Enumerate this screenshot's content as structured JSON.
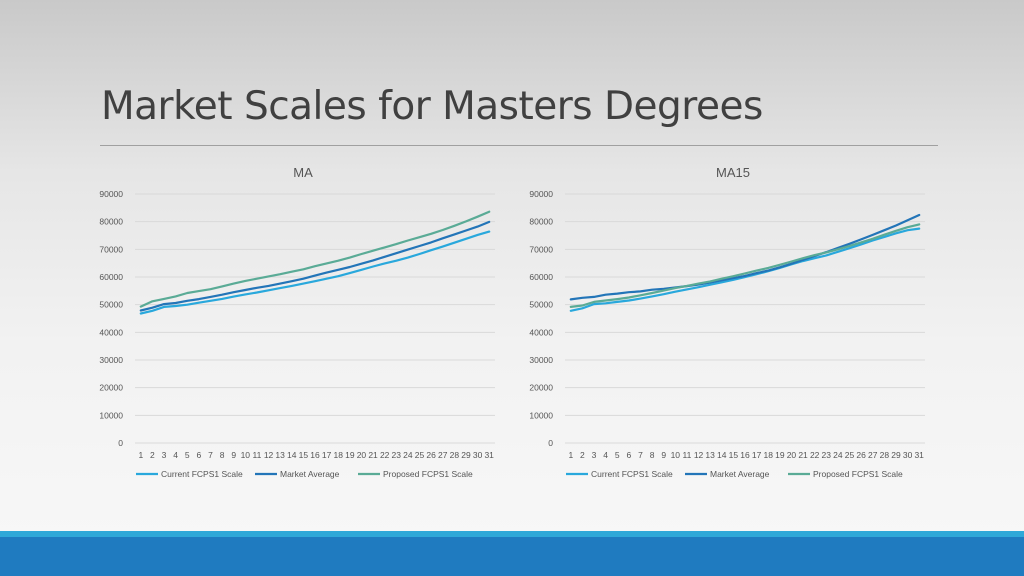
{
  "slide": {
    "title": "Market Scales for  Masters Degrees"
  },
  "colors": {
    "current": "#29a8dc",
    "market": "#2375b8",
    "proposed": "#5aab96",
    "grid": "#d9d9d9",
    "footer": "#1f7bc0",
    "footer_strip": "#2fa8d8"
  },
  "chart_data": [
    {
      "type": "line",
      "title": "MA",
      "x": [
        1,
        2,
        3,
        4,
        5,
        6,
        7,
        8,
        9,
        10,
        11,
        12,
        13,
        14,
        15,
        16,
        17,
        18,
        19,
        20,
        21,
        22,
        23,
        24,
        25,
        26,
        27,
        28,
        29,
        30,
        31
      ],
      "ylim": [
        0,
        90000
      ],
      "yticks": [
        0,
        10000,
        20000,
        30000,
        40000,
        50000,
        60000,
        70000,
        80000,
        90000
      ],
      "grid": true,
      "legend_position": "bottom",
      "series": [
        {
          "name": "Current FCPS1 Scale",
          "color": "#29a8dc",
          "values": [
            46800,
            47800,
            49200,
            49500,
            50000,
            50700,
            51400,
            52100,
            52900,
            53700,
            54400,
            55200,
            56000,
            56800,
            57600,
            58500,
            59400,
            60300,
            61400,
            62600,
            63800,
            64900,
            65900,
            67000,
            68300,
            69700,
            71000,
            72400,
            73800,
            75200,
            76400
          ]
        },
        {
          "name": "Market Average",
          "color": "#2375b8",
          "values": [
            47900,
            48900,
            50200,
            50600,
            51400,
            52000,
            52800,
            53600,
            54500,
            55300,
            56100,
            56800,
            57600,
            58500,
            59400,
            60500,
            61600,
            62600,
            63600,
            64800,
            66000,
            67300,
            68600,
            69900,
            71200,
            72500,
            74000,
            75400,
            76800,
            78200,
            79900
          ]
        },
        {
          "name": "Proposed FCPS1 Scale",
          "color": "#5aab96",
          "values": [
            49300,
            51200,
            52100,
            53000,
            54200,
            54900,
            55600,
            56600,
            57600,
            58600,
            59400,
            60200,
            61000,
            61900,
            62800,
            63900,
            64900,
            65900,
            67000,
            68300,
            69500,
            70700,
            71900,
            73200,
            74400,
            75600,
            77000,
            78500,
            80100,
            81800,
            83600
          ]
        }
      ]
    },
    {
      "type": "line",
      "title": "MA15",
      "x": [
        1,
        2,
        3,
        4,
        5,
        6,
        7,
        8,
        9,
        10,
        11,
        12,
        13,
        14,
        15,
        16,
        17,
        18,
        19,
        20,
        21,
        22,
        23,
        24,
        25,
        26,
        27,
        28,
        29,
        30,
        31
      ],
      "ylim": [
        0,
        90000
      ],
      "yticks": [
        0,
        10000,
        20000,
        30000,
        40000,
        50000,
        60000,
        70000,
        80000,
        90000
      ],
      "grid": true,
      "legend_position": "bottom",
      "series": [
        {
          "name": "Current FCPS1 Scale",
          "color": "#29a8dc",
          "values": [
            47800,
            48700,
            50200,
            50500,
            51000,
            51500,
            52200,
            53000,
            53800,
            54700,
            55500,
            56300,
            57200,
            58100,
            59000,
            60000,
            61000,
            62100,
            63300,
            64600,
            65800,
            66800,
            67800,
            69100,
            70400,
            71800,
            73200,
            74500,
            75800,
            76900,
            77500
          ]
        },
        {
          "name": "Market Average",
          "color": "#2375b8",
          "values": [
            51900,
            52500,
            52800,
            53600,
            54000,
            54500,
            54800,
            55400,
            55700,
            56200,
            56700,
            57300,
            58000,
            58800,
            59600,
            60400,
            61400,
            62300,
            63500,
            64800,
            66200,
            67600,
            69000,
            70500,
            72000,
            73600,
            75200,
            76900,
            78600,
            80500,
            82400
          ]
        },
        {
          "name": "Proposed FCPS1 Scale",
          "color": "#5aab96",
          "values": [
            49200,
            49700,
            51000,
            51500,
            52000,
            52600,
            53400,
            54200,
            55100,
            56000,
            56800,
            57600,
            58400,
            59400,
            60300,
            61300,
            62300,
            63300,
            64400,
            65600,
            66800,
            67900,
            68900,
            70000,
            71200,
            72500,
            73800,
            75300,
            76700,
            78000,
            79000
          ]
        }
      ]
    }
  ]
}
